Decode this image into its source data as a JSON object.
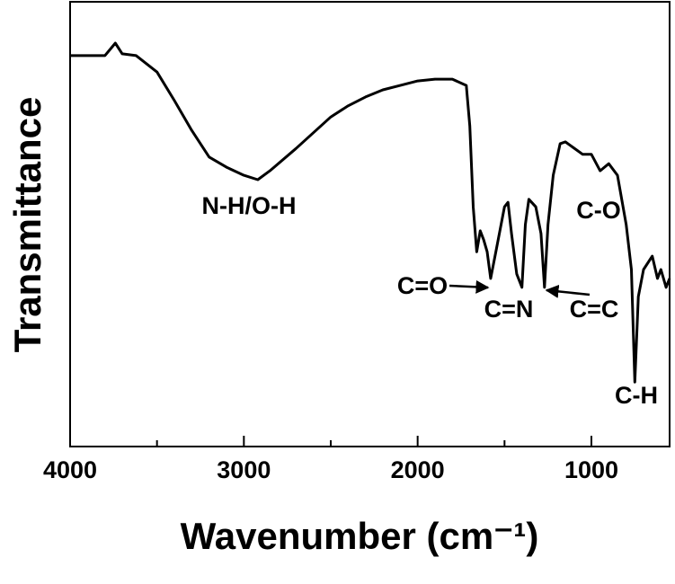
{
  "chart_data": {
    "type": "line",
    "xlabel": "Wavenumber (cm⁻¹)",
    "ylabel": "Transmittance",
    "color": "#000000",
    "x": [
      4000,
      3800,
      3740,
      3700,
      3620,
      3500,
      3400,
      3300,
      3200,
      3100,
      3000,
      2920,
      2850,
      2700,
      2500,
      2400,
      2300,
      2200,
      2100,
      2000,
      1900,
      1800,
      1720,
      1700,
      1680,
      1660,
      1640,
      1620,
      1600,
      1580,
      1550,
      1500,
      1480,
      1460,
      1430,
      1400,
      1380,
      1360,
      1320,
      1290,
      1270,
      1250,
      1220,
      1180,
      1150,
      1100,
      1050,
      1000,
      950,
      900,
      850,
      800,
      770,
      750,
      730,
      700,
      650,
      620,
      600,
      570,
      550
    ],
    "values": [
      87.9,
      87.9,
      90.7,
      88.3,
      87.9,
      84.2,
      77.8,
      71.1,
      65.1,
      62.8,
      61.0,
      60.0,
      62.0,
      67.0,
      74.1,
      76.6,
      78.6,
      80.2,
      81.2,
      82.2,
      82.6,
      82.6,
      81.2,
      72.1,
      53.9,
      43.8,
      48.5,
      46.5,
      43.8,
      37.8,
      43.8,
      53.9,
      54.9,
      47.9,
      38.8,
      35.8,
      49.9,
      55.6,
      53.9,
      47.9,
      35.8,
      49.9,
      61.0,
      68.1,
      68.5,
      67.1,
      65.7,
      65.7,
      62.0,
      63.6,
      61.0,
      49.9,
      39.8,
      14.5,
      33.7,
      39.8,
      42.8,
      37.8,
      39.8,
      35.8,
      37.8
    ],
    "xlim": [
      4000,
      550
    ],
    "ylim": [
      0,
      100
    ],
    "xticks": [
      4000,
      3000,
      2000,
      1000
    ],
    "xminorticks": [
      3500,
      2500,
      1500
    ],
    "annotations": [
      "N-H/O-H",
      "C=O",
      "C=N",
      "C=C",
      "C-O",
      "C-H"
    ]
  }
}
